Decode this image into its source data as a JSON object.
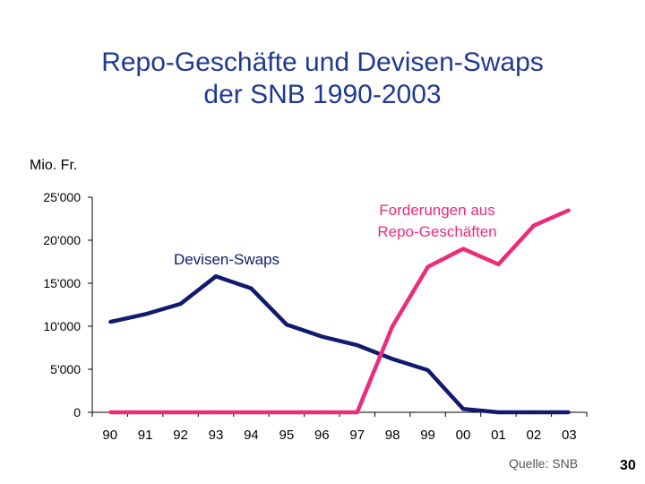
{
  "slide": {
    "title_line1": "Repo-Geschäfte und Devisen-Swaps",
    "title_line2": "der SNB 1990-2003",
    "unit": "Mio. Fr.",
    "source": "Quelle: SNB",
    "page_number": "30"
  },
  "colors": {
    "title": "#1f3a93",
    "devisen": "#101a6e",
    "repo": "#ee2a7b"
  },
  "chart_data": {
    "type": "line",
    "title": "Repo-Geschäfte und Devisen-Swaps der SNB 1990-2003",
    "ylabel": "Mio. Fr.",
    "xlabel": "",
    "ylim": [
      0,
      25000
    ],
    "yticks": [
      0,
      5000,
      10000,
      15000,
      20000,
      25000
    ],
    "ytick_labels": [
      "0",
      "5'000",
      "10'000",
      "15'000",
      "20'000",
      "25'000"
    ],
    "categories": [
      "90",
      "91",
      "92",
      "93",
      "94",
      "95",
      "96",
      "97",
      "98",
      "99",
      "00",
      "01",
      "02",
      "03"
    ],
    "grid": false,
    "series": [
      {
        "name": "Devisen-Swaps",
        "label": "Devisen-Swaps",
        "color": "#101a6e",
        "values": [
          10500,
          11400,
          12600,
          15800,
          14400,
          10200,
          8800,
          7800,
          6200,
          4900,
          400,
          0,
          0,
          0
        ]
      },
      {
        "name": "Forderungen aus Repo-Geschäften",
        "label_lines": [
          "Forderungen aus",
          "Repo-Geschäften"
        ],
        "color": "#ee2a7b",
        "values": [
          0,
          0,
          0,
          0,
          0,
          0,
          0,
          0,
          10000,
          16900,
          19000,
          17200,
          21700,
          23500
        ]
      }
    ]
  }
}
